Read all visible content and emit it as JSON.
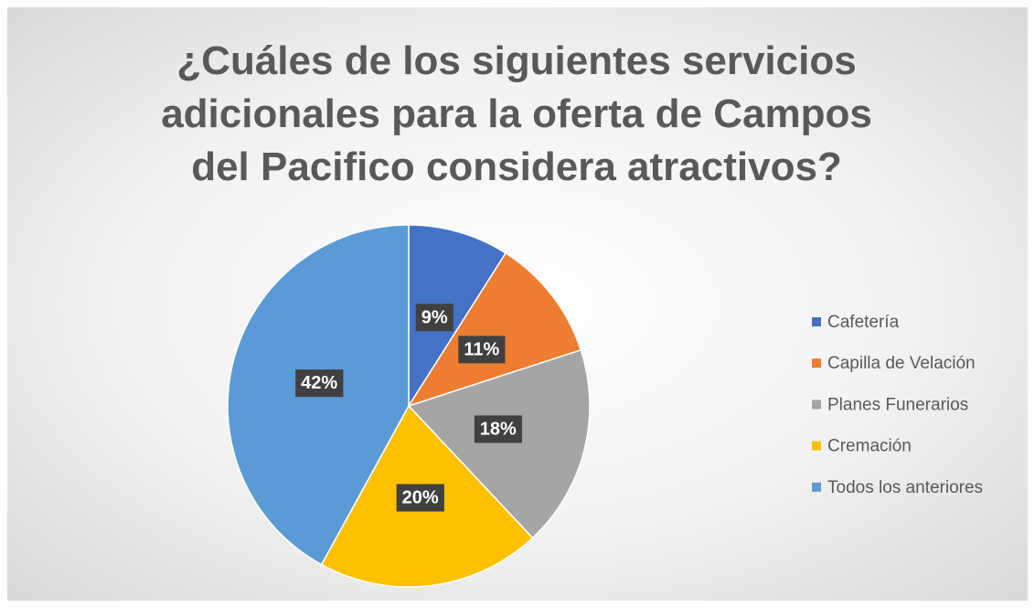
{
  "chart_data": {
    "type": "pie",
    "title": "¿Cuáles de los siguientes servicios adicionales para la oferta de Campos del Pacifico considera atractivos?",
    "categories": [
      "Cafetería",
      "Capilla de Velación",
      "Planes Funerarios",
      "Cremación",
      "Todos los anteriores"
    ],
    "values": [
      9,
      11,
      18,
      20,
      42
    ],
    "value_labels": [
      "9%",
      "11%",
      "18%",
      "20%",
      "42%"
    ],
    "colors": [
      "#4472c4",
      "#ed7d31",
      "#a5a5a5",
      "#ffc000",
      "#5b9bd5"
    ],
    "legend": "right"
  }
}
